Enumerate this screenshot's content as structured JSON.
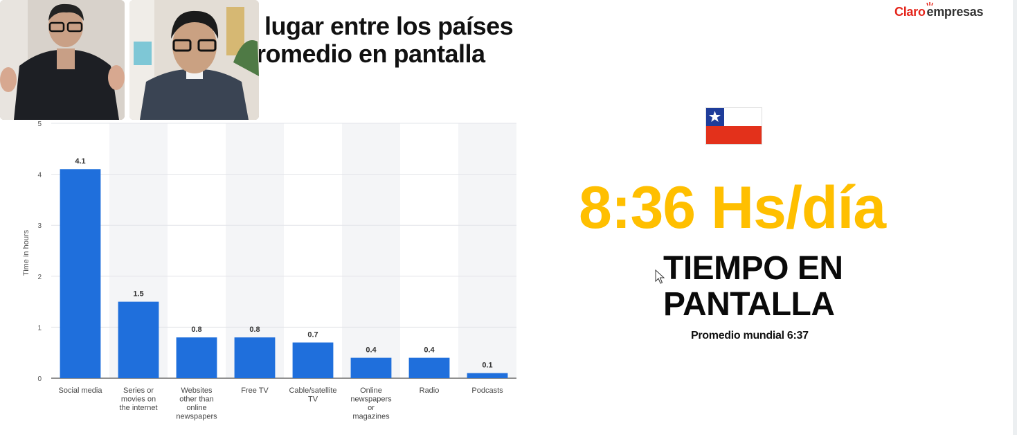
{
  "slide": {
    "title_line1": "lugar entre los países",
    "title_line2": "romedio en pantalla"
  },
  "brand": {
    "part1": "Claro",
    "part2": "empresas",
    "accent_color": "#e4251b"
  },
  "video_tiles": [
    {
      "name": "participant-1"
    },
    {
      "name": "participant-2"
    }
  ],
  "chart_data": {
    "type": "bar",
    "categories": [
      [
        "Social media"
      ],
      [
        "Series or",
        "movies on",
        "the internet"
      ],
      [
        "Websites",
        "other than",
        "online",
        "newspapers"
      ],
      [
        "Free TV"
      ],
      [
        "Cable/satellite",
        "TV"
      ],
      [
        "Online",
        "newspapers",
        "or",
        "magazines"
      ],
      [
        "Radio"
      ],
      [
        "Podcasts"
      ]
    ],
    "values": [
      4.1,
      1.5,
      0.8,
      0.8,
      0.7,
      0.4,
      0.4,
      0.1
    ],
    "value_labels": [
      "4.1",
      "1.5",
      "0.8",
      "0.8",
      "0.7",
      "0.4",
      "0.4",
      "0.1"
    ],
    "ylabel": "Time in hours",
    "yticks": [
      "0",
      "1",
      "2",
      "3",
      "4",
      "5"
    ],
    "ylim": [
      0,
      5
    ],
    "grid": true,
    "bar_color": "#1f6fdc"
  },
  "stats": {
    "big_value": "8:36 Hs/día",
    "heading_line1": "TIEMPO EN",
    "heading_line2": "PANTALLA",
    "subtext": "Promedio mundial 6:37",
    "accent_color": "#ffbf00"
  },
  "flag": {
    "name": "chile-flag"
  }
}
